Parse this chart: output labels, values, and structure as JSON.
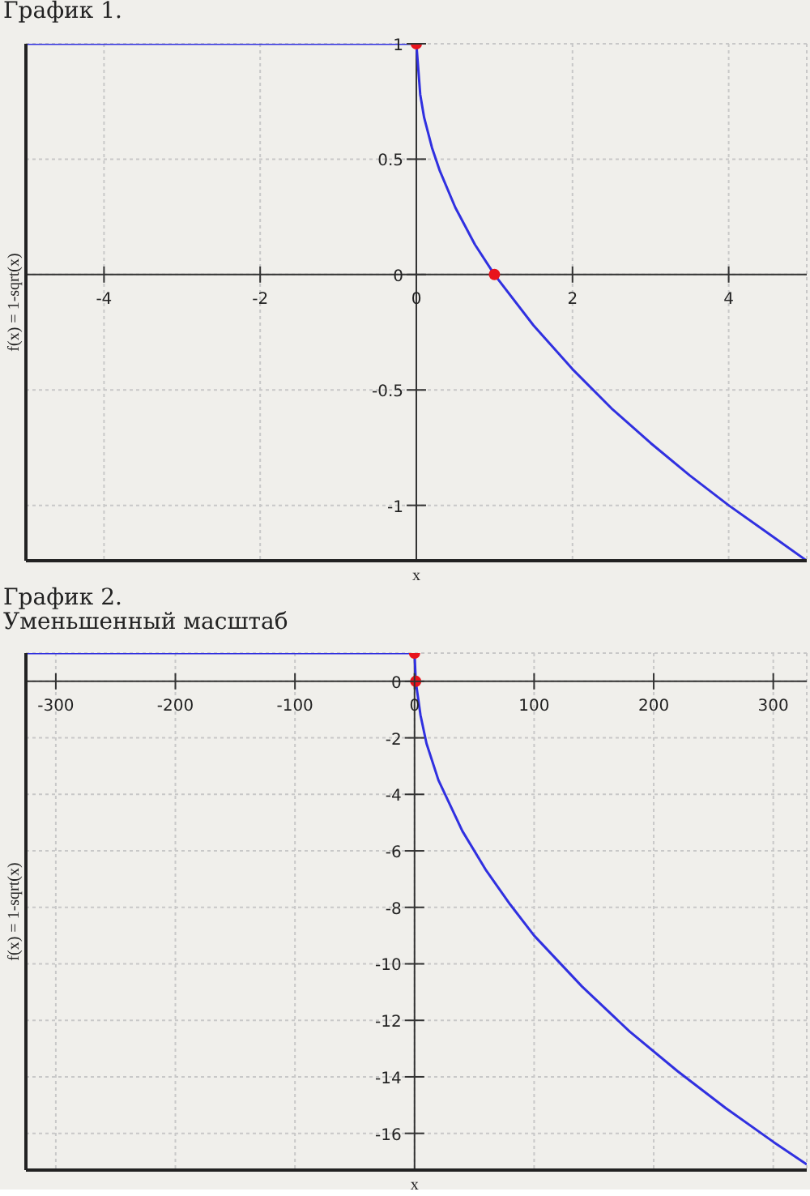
{
  "chart_data": [
    {
      "type": "line",
      "title": "График 1.",
      "xlabel": "x",
      "ylabel": "f(x) = 1-sqrt(x)",
      "xlim": [
        -5,
        5
      ],
      "ylim": [
        -1.24,
        1
      ],
      "xticks": [
        -4,
        -2,
        0,
        2,
        4
      ],
      "yticks": [
        -1,
        -0.5,
        0,
        0.5,
        1
      ],
      "grid": true,
      "series": [
        {
          "type": "line",
          "color": "#3030e0",
          "x": [
            -5,
            0,
            0.05,
            0.1,
            0.2,
            0.3,
            0.5,
            0.75,
            1,
            1.5,
            2,
            2.5,
            3,
            3.5,
            4,
            4.5,
            5
          ],
          "values": [
            1,
            1,
            0.78,
            0.68,
            0.55,
            0.45,
            0.29,
            0.13,
            0,
            -0.22,
            -0.41,
            -0.58,
            -0.73,
            -0.87,
            -1,
            -1.12,
            -1.24
          ]
        },
        {
          "type": "scatter",
          "color": "#e8141c",
          "x": [
            0,
            1
          ],
          "values": [
            1,
            0
          ]
        }
      ]
    },
    {
      "type": "line",
      "title": "График 2.",
      "subtitle": "Уменьшенный масштаб",
      "xlabel": "x",
      "ylabel": "f(x) = 1-sqrt(x)",
      "xlim": [
        -325,
        328
      ],
      "ylim": [
        -17.3,
        1
      ],
      "xticks": [
        -300,
        -200,
        -100,
        0,
        100,
        200,
        300
      ],
      "yticks": [
        -16,
        -14,
        -12,
        -10,
        -8,
        -6,
        -4,
        -2,
        0
      ],
      "grid": true,
      "series": [
        {
          "type": "line",
          "color": "#3030e0",
          "x": [
            -325,
            0,
            1,
            5,
            10,
            20,
            40,
            60,
            80,
            100,
            140,
            180,
            220,
            260,
            300,
            328
          ],
          "values": [
            1,
            1,
            0,
            -1.2,
            -2.2,
            -3.5,
            -5.3,
            -6.7,
            -7.9,
            -9,
            -10.8,
            -12.4,
            -13.8,
            -15.1,
            -16.3,
            -17.1
          ]
        },
        {
          "type": "scatter",
          "color": "#e8141c",
          "x": [
            0,
            1
          ],
          "values": [
            1,
            0
          ]
        }
      ]
    }
  ]
}
